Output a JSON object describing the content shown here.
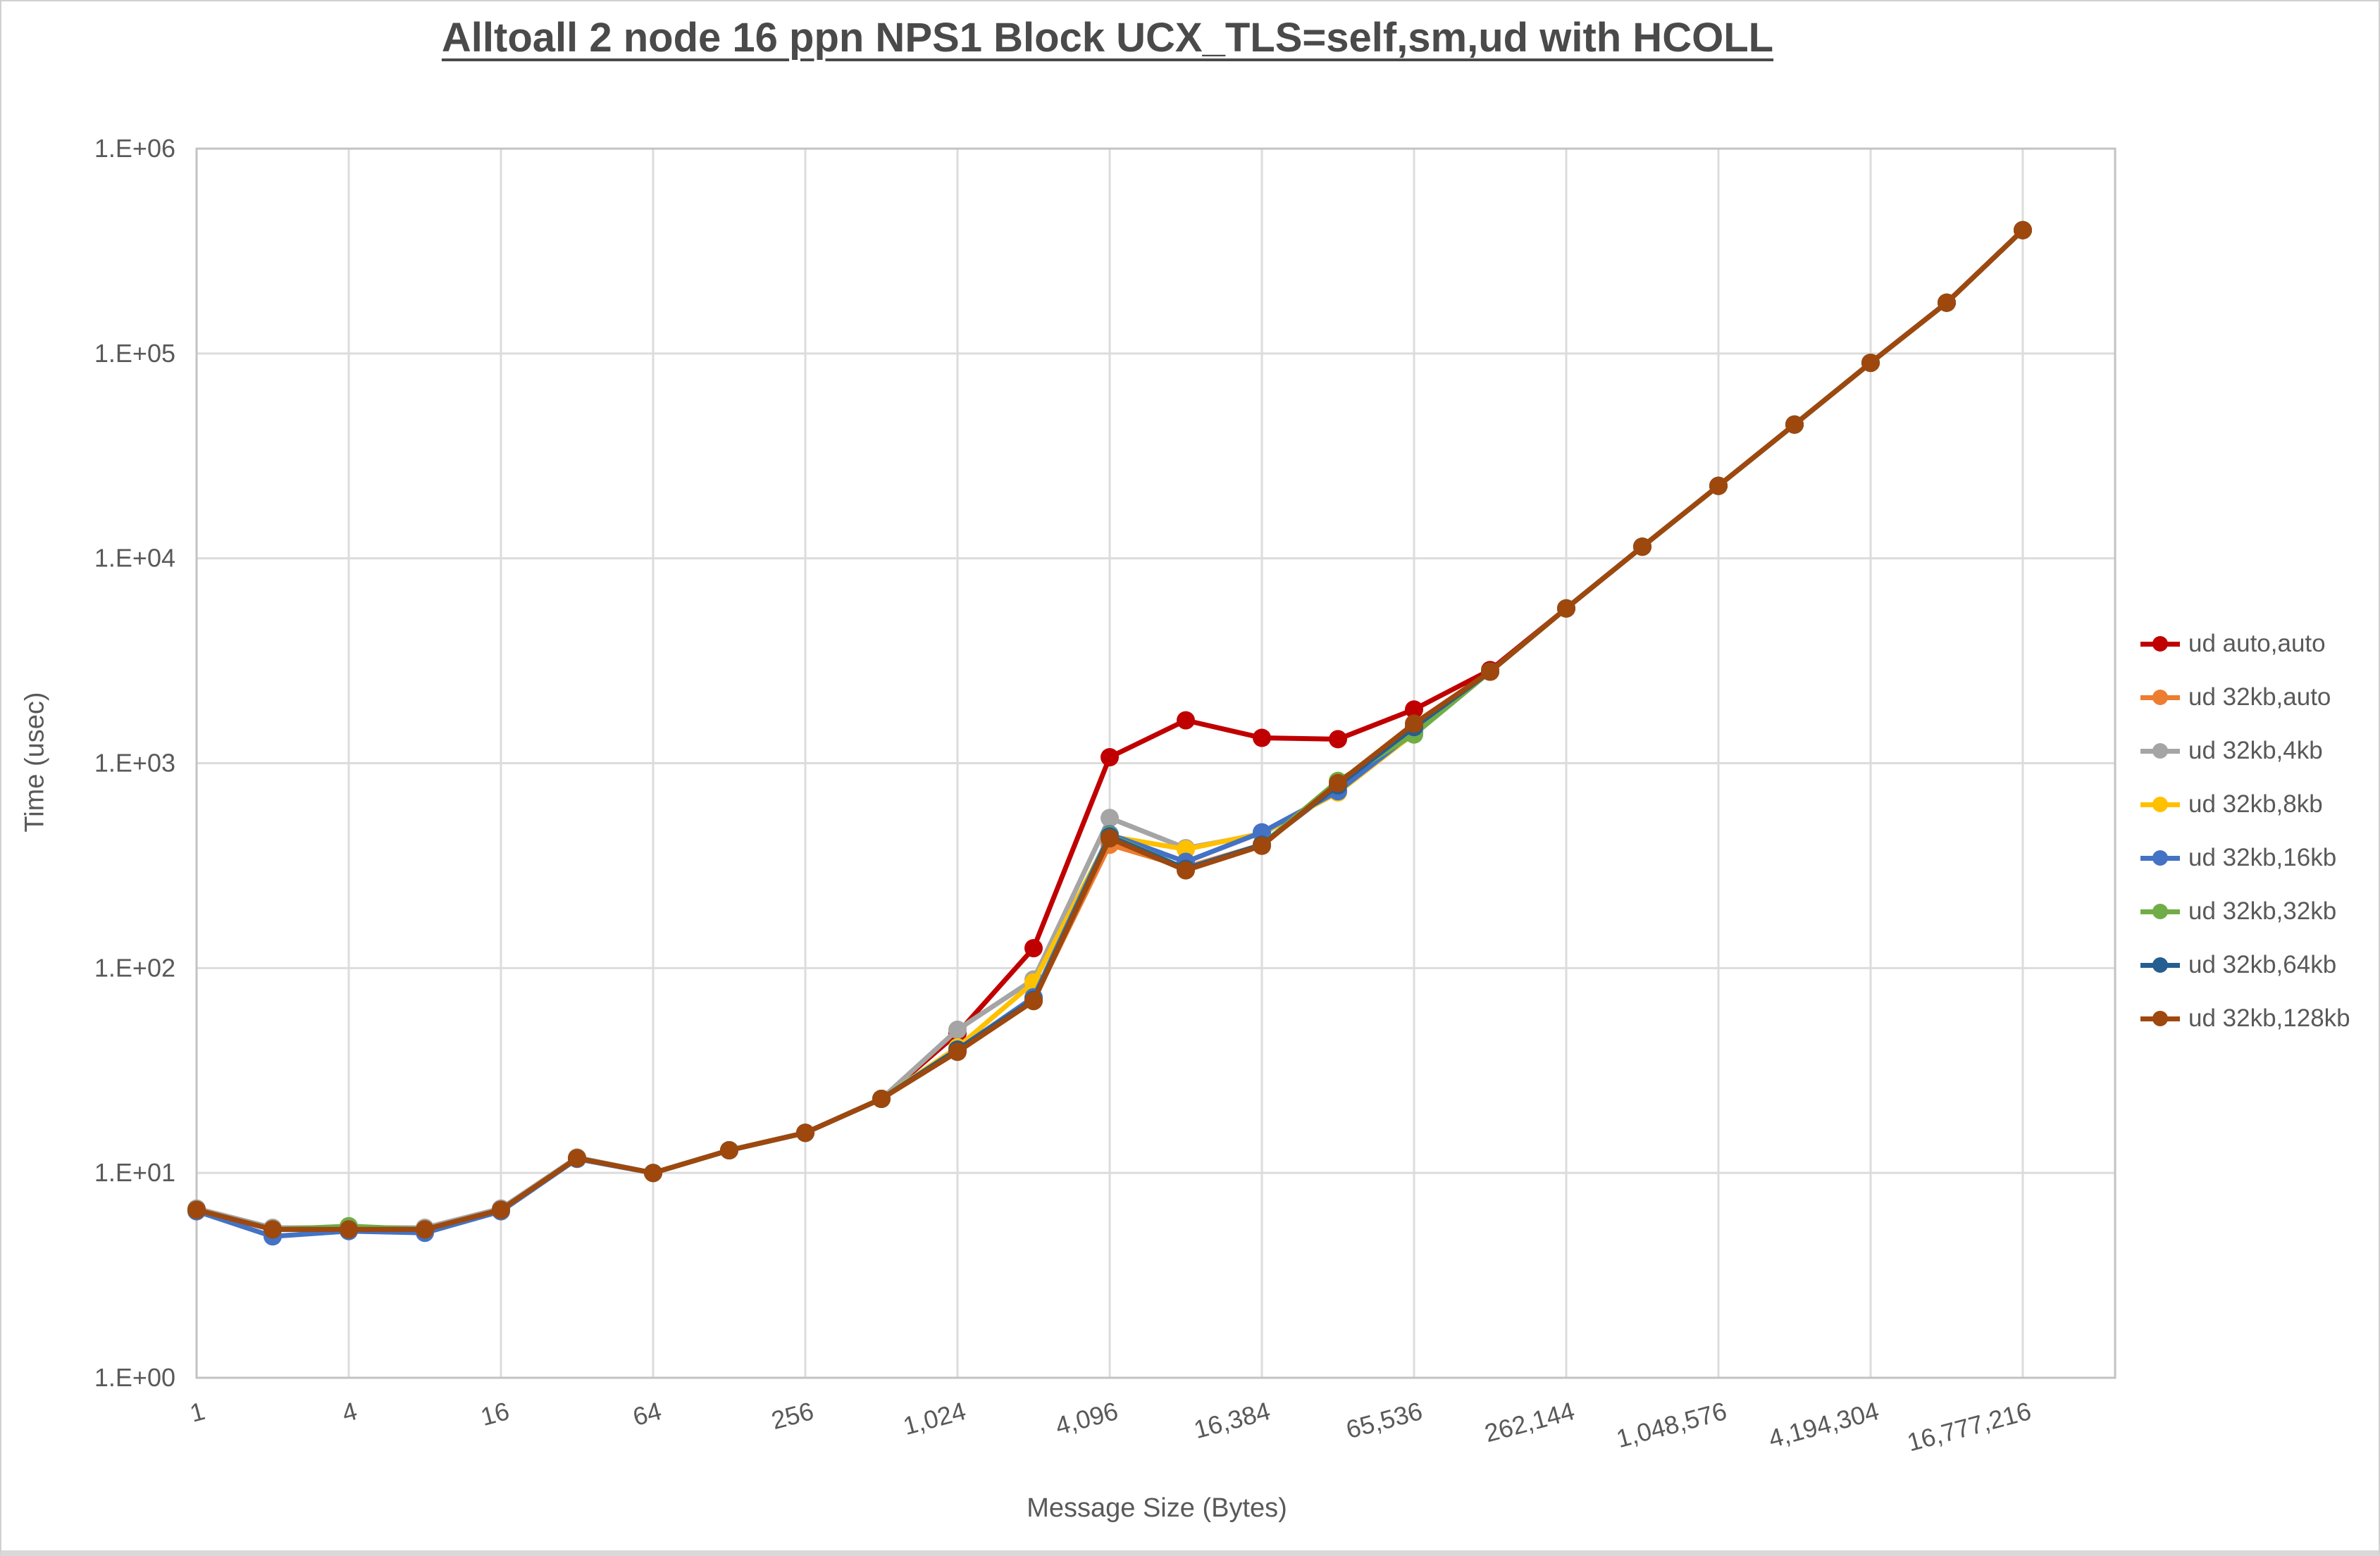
{
  "title": "Alltoall 2 node 16 ppn NPS1 Block UCX_TLS=self,sm,ud with HCOLL",
  "chart_data": {
    "type": "line",
    "title": "Alltoall 2 node 16 ppn NPS1 Block UCX_TLS=self,sm,ud with HCOLL",
    "xlabel": "Message Size (Bytes)",
    "ylabel": "Time (usec)",
    "x_scale": "log2",
    "y_scale": "log10",
    "ylim": [
      1,
      1000000
    ],
    "grid": true,
    "legend_position": "right",
    "y_tick_labels": [
      "1.E+00",
      "1.E+01",
      "1.E+02",
      "1.E+03",
      "1.E+04",
      "1.E+05",
      "1.E+06"
    ],
    "x": [
      1,
      2,
      4,
      8,
      16,
      32,
      64,
      128,
      256,
      512,
      1024,
      2048,
      4096,
      8192,
      16384,
      32768,
      65536,
      131072,
      262144,
      524288,
      1048576,
      2097152,
      4194304,
      8388608,
      16777216
    ],
    "x_tick_labels": [
      "1",
      "4",
      "16",
      "64",
      "256",
      "1,024",
      "4,096",
      "16,384",
      "65,536",
      "262,144",
      "1,048,576",
      "4,194,304",
      "16,777,216"
    ],
    "series": [
      {
        "name": "ud auto,auto",
        "color": "#C00000",
        "values": [
          6.6,
          5.3,
          5.3,
          5.3,
          6.6,
          11.8,
          10,
          12.9,
          15.7,
          23,
          48,
          125,
          1070,
          1620,
          1330,
          1310,
          1830,
          2850,
          5700,
          11400,
          22600,
          45000,
          90000,
          177000,
          400000
        ]
      },
      {
        "name": "ud 32kb,auto",
        "color": "#ED7D31",
        "values": [
          6.6,
          5.3,
          5.3,
          5.3,
          6.6,
          11.8,
          10,
          12.9,
          15.7,
          23,
          40,
          70,
          400,
          310,
          400,
          770,
          1450,
          2800,
          5700,
          11400,
          22600,
          45000,
          90000,
          177000,
          400000
        ]
      },
      {
        "name": "ud 32kb,4kb",
        "color": "#A5A5A5",
        "values": [
          6.7,
          5.4,
          5.4,
          5.4,
          6.7,
          11.9,
          10,
          12.9,
          15.7,
          23,
          50,
          88,
          540,
          385,
          450,
          740,
          1450,
          2800,
          5700,
          11400,
          22600,
          45000,
          90000,
          177000,
          400000
        ]
      },
      {
        "name": "ud 32kb,8kb",
        "color": "#FFC000",
        "values": [
          6.6,
          5.3,
          5.3,
          5.3,
          6.6,
          11.8,
          10,
          12.9,
          15.7,
          23,
          41,
          85,
          440,
          380,
          455,
          720,
          1400,
          2800,
          5700,
          11400,
          22600,
          45000,
          90000,
          177000,
          400000
        ]
      },
      {
        "name": "ud 32kb,16kb",
        "color": "#4472C4",
        "values": [
          6.5,
          4.9,
          5.2,
          5.1,
          6.5,
          11.7,
          10,
          12.9,
          15.7,
          23,
          40,
          72,
          450,
          330,
          460,
          730,
          1420,
          2800,
          5700,
          11400,
          22600,
          45000,
          90000,
          177000,
          400000
        ]
      },
      {
        "name": "ud 32kb,32kb",
        "color": "#70AD47",
        "values": [
          6.6,
          5.3,
          5.5,
          5.3,
          6.6,
          11.8,
          10,
          12.9,
          15.7,
          23,
          40,
          70,
          445,
          305,
          400,
          820,
          1380,
          2800,
          5700,
          11400,
          22600,
          45000,
          90000,
          177000,
          400000
        ]
      },
      {
        "name": "ud 32kb,64kb",
        "color": "#255E91",
        "values": [
          6.6,
          5.3,
          5.3,
          5.3,
          6.6,
          11.8,
          10,
          12.9,
          15.7,
          23,
          40,
          70,
          440,
          305,
          400,
          780,
          1500,
          2800,
          5700,
          11400,
          22600,
          45000,
          90000,
          177000,
          400000
        ]
      },
      {
        "name": "ud 32kb,128kb",
        "color": "#9E480E",
        "values": [
          6.6,
          5.3,
          5.3,
          5.3,
          6.6,
          11.8,
          10,
          12.9,
          15.7,
          23,
          39,
          69,
          430,
          300,
          395,
          800,
          1560,
          2800,
          5700,
          11400,
          22600,
          45000,
          90000,
          177000,
          400000
        ]
      }
    ]
  }
}
